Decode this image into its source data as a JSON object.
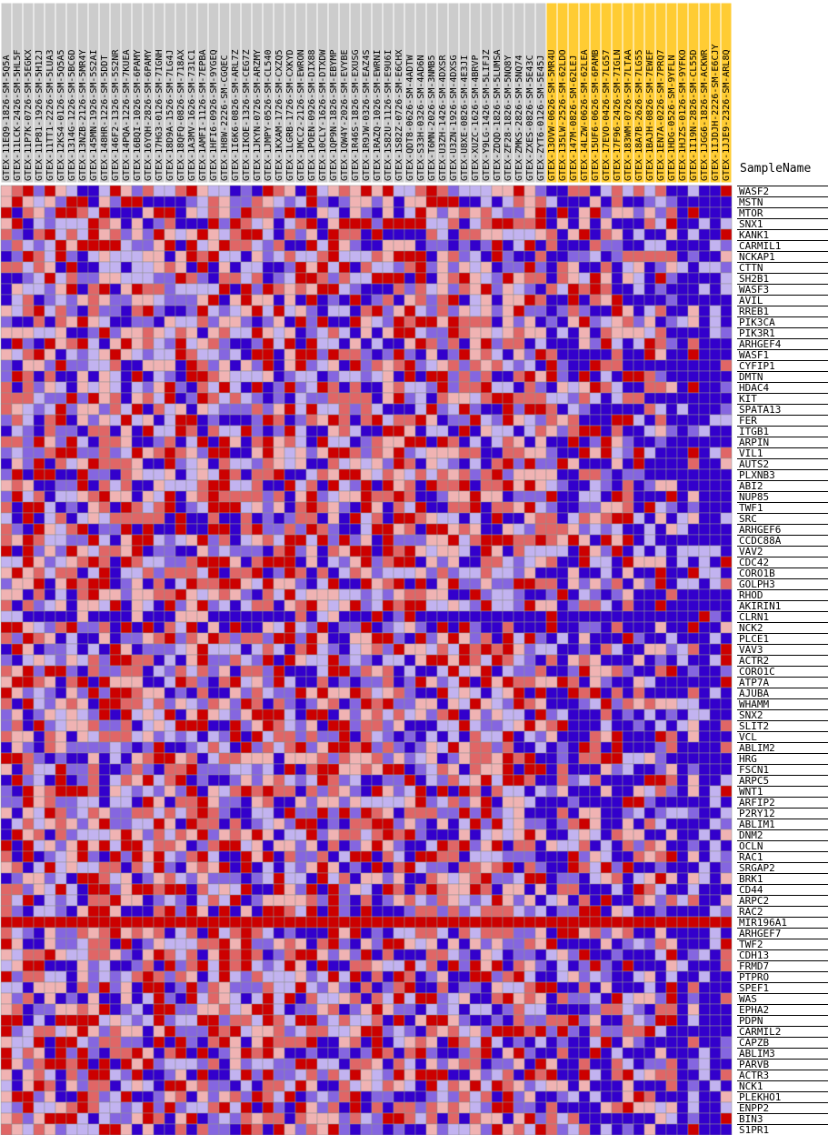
{
  "chart_data": {
    "type": "heatmap",
    "header": "SampleName",
    "colors": {
      "low": "#3300cc",
      "mid": "#ffffff",
      "high": "#cc0000",
      "highlight": "#ffcc33",
      "gray": "#cccccc"
    },
    "samples": [
      "GTEX-11EQ9-1826-SM-5Q5A",
      "GTEX-11LCK-2426-SM-5HL5F",
      "GTEX-11P7K-0726-SM-5EGKX",
      "GTEX-11P81-1926-SM-5H12J",
      "GTEX-11TT1-2226-SM-5LUA3",
      "GTEX-12KS4-0126-SM-5Q5A5",
      "GTEX-1314G-1226-SM-5BC6D",
      "GTEX-13NZB-2126-SM-5MR4Y",
      "GTEX-145MN-1926-SM-5S2AI",
      "GTEX-148HR-1226-SM-5DDT",
      "GTEX-146F2-1326-SM-5S2NR",
      "GTEX-14PQA-1226-SM-7KUEA",
      "GTEX-16BQI-1026-SM-6PAMY",
      "GTEX-16YQH-2826-SM-6PAMY",
      "GTEX-17HG3-0126-SM-7IGNH",
      "GTEX-18D9A-1526-SM-7LG4J",
      "GTEX-18QFQ-0826-SM-718AX",
      "GTEX-1A3MV-1626-SM-731C1",
      "GTEX-1AMFI-1126-SM-7EPBA",
      "GTEX-1HFI6-0926-SM-9YGEQ",
      "GTEX-1H8W-2226-SM-CGQEC",
      "GTEX-1I6K6-0826-SM-ARL7Z",
      "GTEX-1IKOE-1326-SM-CEG7Z",
      "GTEX-1JKYN-0726-SM-ARZMY",
      "GTEX-1JMPY-0526-SM-CL540",
      "GTEX-1KXAM-1726-SM-CXZQ5",
      "GTEX-1LGRB-1726-SM-CXKYD",
      "GTEX-1MCC2-2126-SM-EWRON",
      "GTEX-1POEN-0926-SM-DIX88",
      "GTEX-10CLY-1626-SM-DTXDW",
      "GTEX-1QP9N-1826-SM-EBYMP",
      "GTEX-1QW4Y-2026-SM-EVYBE",
      "GTEX-1R46S-1826-SM-EXUSG",
      "GTEX-1R9JW-0326-SM-EAZ4S",
      "GTEX-1RAZQ-1026-SM-EWRNI",
      "GTEX-1S82U-1126-SM-E9U6I",
      "GTEX-1S82Z-0726-SM-E6CHX",
      "GTEX-QDT8-0626-SM-4ADTW",
      "GTEX-S33H-0326-SM-4AD6N",
      "GTEX-T6MN-2026-SM-3NMB5",
      "GTEX-U3ZH-1426-SM-4DXSR",
      "GTEX-U3ZN-1926-SM-4DXSG",
      "GTEX-U8XE-0826-SM-4E3JI",
      "GTEX-XUZC-1626-SM-4BRVP",
      "GTEX-Y9LG-1426-SM-5LIFJZ",
      "GTEX-ZDQD-1826-SM-5LUMSA",
      "GTEX-ZF28-1826-SM-5NQ8Y",
      "GTEX-ZMKS-2826-SM-5NQ74",
      "GTEX-ZXES-0826-SM-5E43C",
      "GTEX-ZYT6-0126-SM-5E45J",
      "GTEX-13OVW-0626-SM-5MR4U",
      "GTEX-135LW-2526-SM-62LDO",
      "GTEX-147M-0826-SM-62LEJ",
      "GTEX-14LZW-0626-SM-62LEA",
      "GTEX-15UF6-0626-SM-6PAMB",
      "GTEX-17EVO-0426-SM-7LG57",
      "GTEX-17F96-2426-SM-7IGLN",
      "GTEX-183WM-0726-SM-7LTAA",
      "GTEX-18A7B-2626-SM-7LG55",
      "GTEX-1BAJH-0826-SM-7EWEF",
      "GTEX-1EN7A-0226-SM-7PRQ7",
      "GTEX-1HDG-0526-SM-9YFLN",
      "GTEX-1HJZS-0126-SM-9YFKO",
      "GTEX-1I19N-2826-SM-CL55D",
      "GTEX-1JGG6-1826-SM-ACKWR",
      "GTEX-1IJDJH-2226-SM-E6CJY",
      "GTEX-1JJE9-2326-SM-ARL8Q"
    ],
    "highlight_from": 50,
    "genes": [
      "WASF2",
      "MSTN",
      "MTOR",
      "SNX1",
      "KANK1",
      "CARMIL1",
      "NCKAP1",
      "CTTN",
      "SH2B1",
      "WASF3",
      "AVIL",
      "RREB1",
      "PIK3CA",
      "PIK3R1",
      "ARHGEF4",
      "WASF1",
      "CYFIP1",
      "DMTN",
      "HDAC4",
      "KIT",
      "SPATA13",
      "FER",
      "ITGB1",
      "ARPIN",
      "VIL1",
      "AUTS2",
      "PLXNB3",
      "ABI2",
      "NUP85",
      "TWF1",
      "SRC",
      "ARHGEF6",
      "CCDC88A",
      "VAV2",
      "CDC42",
      "CORO1B",
      "GOLPH3",
      "RHOD",
      "AKIRIN1",
      "CLRN1",
      "NCK2",
      "PLCE1",
      "VAV3",
      "ACTR2",
      "CORO1C",
      "ATP7A",
      "AJUBA",
      "WHAMM",
      "SNX2",
      "SLIT2",
      "VCL",
      "ABLIM2",
      "HRG",
      "FSCN1",
      "ARPC5",
      "WNT1",
      "ARFIP2",
      "P2RY12",
      "ABLIM1",
      "DNM2",
      "OCLN",
      "RAC1",
      "SRGAP2",
      "BRK1",
      "CD44",
      "ARPC2",
      "RAC2",
      "MIR196A1",
      "ARHGEF7",
      "TWF2",
      "CDH13",
      "FRMD7",
      "PTPRO",
      "SPEF1",
      "WAS",
      "EPHA2",
      "PDPN",
      "CARMIL2",
      "CAPZB",
      "ABLIM3",
      "PARVB",
      "ACTR3",
      "NCK1",
      "PLEKHO1",
      "ENPP2",
      "BIN3",
      "S1PR1"
    ]
  }
}
